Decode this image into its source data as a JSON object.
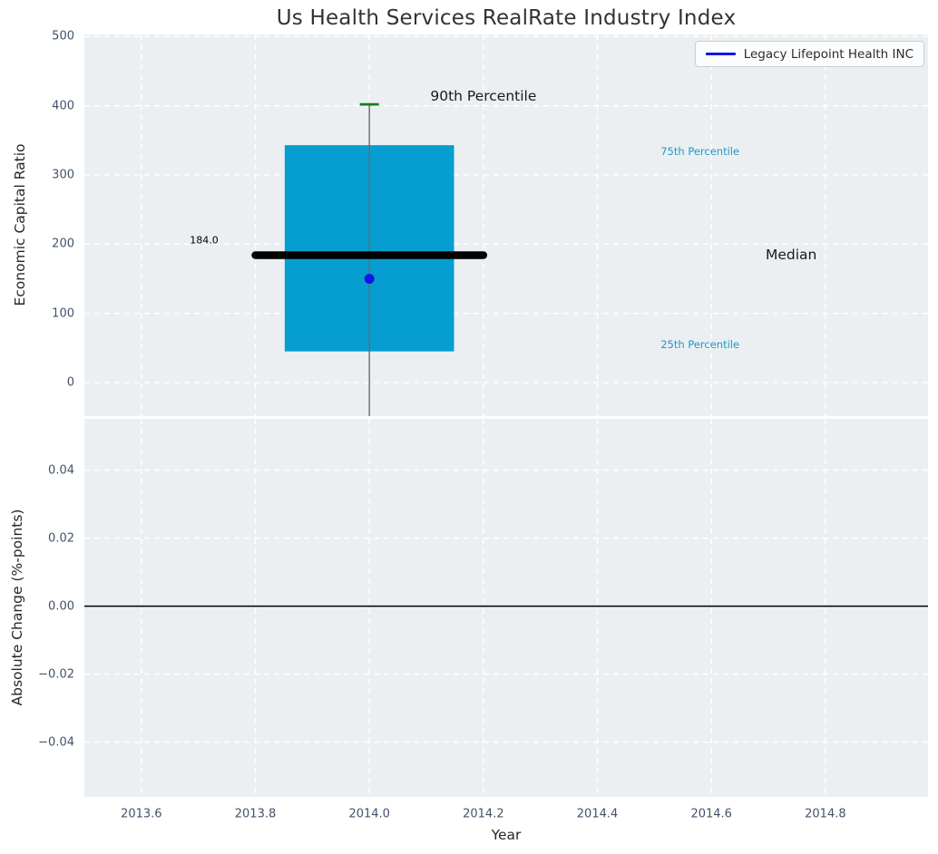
{
  "colors": {
    "panel_bg": "#eceff1",
    "grid": "#ffffff",
    "box_fill": "#069ed0",
    "median_line": "#000000",
    "whisker": "#6b6b6b",
    "p90_cap": "#128012",
    "company_point": "#1414e8",
    "percentile_text": "#1b9ac9",
    "tick_text": "#42526b",
    "axis_label_text": "#262626",
    "title_text": "#333333",
    "zero_line": "#000000"
  },
  "chart_data": {
    "type": "boxplot",
    "title": "Us Health Services RealRate Industry Index",
    "xlabel": "Year",
    "xlim": [
      2013.5,
      2014.98
    ],
    "x_ticks": {
      "values": [
        2013.6,
        2013.8,
        2014.0,
        2014.2,
        2014.4,
        2014.6,
        2014.8
      ],
      "labels": [
        "2013.6",
        "2013.8",
        "2014.0",
        "2014.2",
        "2014.4",
        "2014.6",
        "2014.8"
      ]
    },
    "grid": {
      "style": "dashed",
      "color": "#ffffff",
      "on": true
    },
    "legend": {
      "position": "upper right",
      "entries": [
        {
          "label": "Legacy Lifepoint Health INC",
          "color": "#1414e8"
        }
      ]
    },
    "panels": [
      {
        "name": "economic-capital-ratio",
        "ylabel": "Economic Capital Ratio",
        "ylim": [
          -48.5,
          503
        ],
        "y_ticks": {
          "values": [
            0,
            100,
            200,
            300,
            400,
            500
          ],
          "labels": [
            "0",
            "100",
            "200",
            "300",
            "400",
            "500"
          ]
        },
        "boxplot": {
          "x": 2014.0,
          "box_half_width": 0.1485,
          "p25": 45,
          "p75": 343,
          "median": 184.0,
          "median_half_width": 0.2,
          "p90": 402,
          "whisker_low": "clipped below axis"
        },
        "company_point": {
          "label": "Legacy Lifepoint Health INC",
          "x": 2014.0,
          "y": 150
        },
        "annotations": [
          {
            "id": "90th-percentile",
            "text": "90th Percentile",
            "x": 2014.2,
            "y": 414,
            "kind": "callout"
          },
          {
            "id": "75th-percentile",
            "text": "75th Percentile",
            "x": 2014.58,
            "y": 334,
            "kind": "percentile-blue"
          },
          {
            "id": "median",
            "text": "Median",
            "x": 2014.74,
            "y": 185,
            "kind": "callout"
          },
          {
            "id": "25th-percentile",
            "text": "25th Percentile",
            "x": 2014.58,
            "y": 55,
            "kind": "percentile-blue"
          },
          {
            "id": "median-value",
            "text": "184.0",
            "x": 2013.71,
            "y": 205,
            "kind": "value"
          }
        ]
      },
      {
        "name": "absolute-change",
        "ylabel": "Absolute Change (%-points)",
        "ylim": [
          -0.0561,
          0.0551
        ],
        "y_ticks": {
          "values": [
            0.04,
            0.02,
            0.0,
            -0.02,
            -0.04
          ],
          "labels": [
            "0.04",
            "0.02",
            "0.00",
            "−0.02",
            "−0.04"
          ]
        },
        "zero_line": 0.0
      }
    ]
  }
}
